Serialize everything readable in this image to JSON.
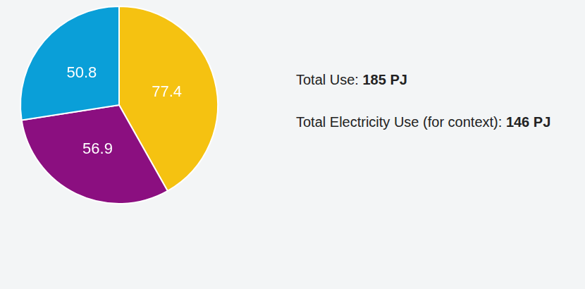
{
  "chart_data": {
    "type": "pie",
    "categories": [
      null,
      null,
      null
    ],
    "values": [
      77.4,
      56.9,
      50.8
    ],
    "colors": [
      "#f5c211",
      "#8b0f80",
      "#0a9fd8"
    ],
    "data_labels": true,
    "annotations": [
      {
        "text": "Total Use:",
        "emphasis": "185 PJ"
      },
      {
        "text": "Total Electricity Use (for context):",
        "emphasis": "146 PJ"
      }
    ]
  }
}
